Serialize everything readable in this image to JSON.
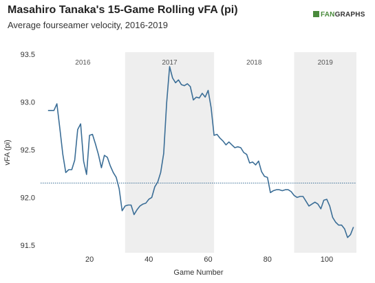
{
  "header": {
    "title": "Masahiro Tanaka's 15-Game Rolling vFA (pi)",
    "subtitle": "Average fourseamer velocity, 2016-2019",
    "logo_part1": "FAN",
    "logo_part2": "GRAPHS"
  },
  "colors": {
    "line": "#3a6d96",
    "shade": "#eeeeee",
    "mean_line": "#3a6d96",
    "logo_green": "#4a8a3c"
  },
  "chart_data": {
    "type": "line",
    "title": "Masahiro Tanaka's 15-Game Rolling vFA (pi)",
    "subtitle": "Average fourseamer velocity, 2016-2019",
    "xlabel": "Game Number",
    "ylabel": "vFA (pi)",
    "xlim": [
      3.5,
      110
    ],
    "ylim": [
      91.42,
      93.52
    ],
    "x_ticks": [
      20,
      40,
      60,
      80,
      100
    ],
    "y_ticks": [
      91.5,
      92.0,
      92.5,
      93.0,
      93.5
    ],
    "x_tick_labels": [
      "20",
      "40",
      "60",
      "80",
      "100"
    ],
    "y_tick_labels": [
      "91.5",
      "92.0",
      "92.5",
      "93.0",
      "93.5"
    ],
    "grid": false,
    "reference_line": {
      "y": 92.15,
      "style": "dotted"
    },
    "seasons": [
      {
        "label": "2016",
        "start": 3.5,
        "end": 32,
        "shaded": false
      },
      {
        "label": "2017",
        "start": 32,
        "end": 62,
        "shaded": true
      },
      {
        "label": "2018",
        "start": 62,
        "end": 89,
        "shaded": false
      },
      {
        "label": "2019",
        "start": 89,
        "end": 110,
        "shaded": true
      }
    ],
    "series": [
      {
        "x": [
          6,
          7,
          8,
          9,
          10,
          11,
          12,
          13,
          14,
          15,
          16,
          17,
          18,
          19,
          20,
          21,
          22,
          23,
          24,
          25,
          26,
          27,
          28,
          29,
          30,
          31,
          32,
          33,
          34,
          35,
          36,
          37,
          38,
          39,
          40,
          41,
          42,
          43,
          44,
          45,
          46,
          47,
          48,
          49,
          50,
          51,
          52,
          53,
          54,
          55,
          56,
          57,
          58,
          59,
          60,
          61,
          62,
          63,
          64,
          65,
          66,
          67,
          68,
          69,
          70,
          71,
          72,
          73,
          74,
          75,
          76,
          77,
          78,
          79,
          80,
          81,
          82,
          83,
          84,
          85,
          86,
          87,
          88,
          89,
          90,
          91,
          92,
          93,
          94,
          95,
          96,
          97,
          98,
          99,
          100,
          101,
          102,
          103,
          104,
          105,
          106,
          107,
          108,
          109
        ],
        "values": [
          92.91,
          92.91,
          92.91,
          92.98,
          92.72,
          92.45,
          92.26,
          92.29,
          92.29,
          92.39,
          92.71,
          92.77,
          92.38,
          92.24,
          92.65,
          92.66,
          92.56,
          92.45,
          92.31,
          92.44,
          92.42,
          92.33,
          92.26,
          92.21,
          92.09,
          91.86,
          91.91,
          91.92,
          91.92,
          91.82,
          91.87,
          91.91,
          91.93,
          91.94,
          91.98,
          92.0,
          92.11,
          92.16,
          92.26,
          92.46,
          92.99,
          93.37,
          93.25,
          93.2,
          93.23,
          93.18,
          93.17,
          93.19,
          93.16,
          93.02,
          93.05,
          93.04,
          93.09,
          93.05,
          93.12,
          92.94,
          92.65,
          92.66,
          92.62,
          92.59,
          92.55,
          92.58,
          92.55,
          92.52,
          92.53,
          92.52,
          92.47,
          92.45,
          92.36,
          92.37,
          92.34,
          92.38,
          92.27,
          92.22,
          92.21,
          92.05,
          92.07,
          92.08,
          92.08,
          92.07,
          92.08,
          92.08,
          92.06,
          92.02,
          92.0,
          92.01,
          92.01,
          91.96,
          91.91,
          91.93,
          91.95,
          91.93,
          91.88,
          91.97,
          91.98,
          91.91,
          91.79,
          91.74,
          91.71,
          91.71,
          91.67,
          91.58,
          91.61,
          91.69
        ]
      }
    ]
  }
}
